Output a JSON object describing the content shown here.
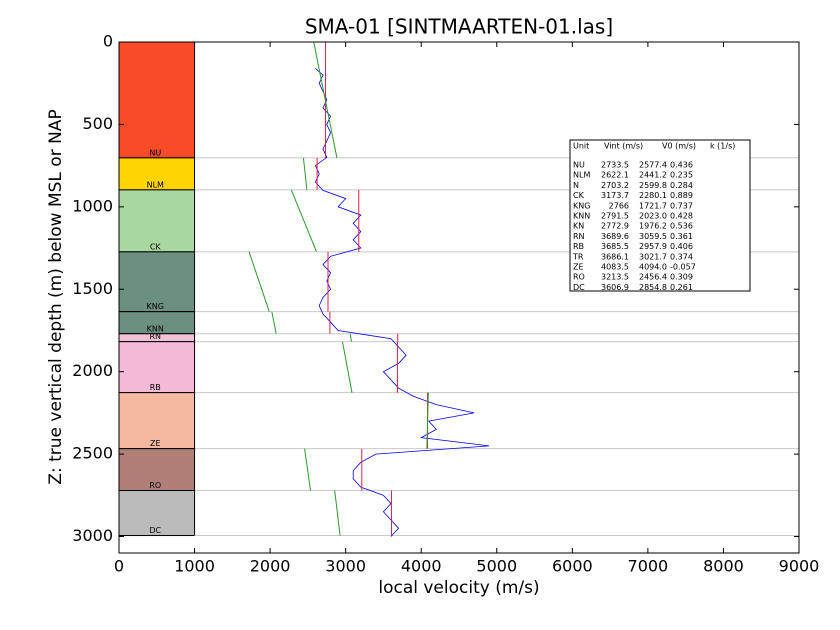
{
  "chart_data": {
    "type": "well-log",
    "title": "SMA-01 [SINTMAARTEN-01.las]",
    "x_label": "local velocity (m/s)",
    "y_label": "Z: true vertical depth (m) below MSL or NAP",
    "xlim": [
      0,
      9000
    ],
    "ylim": [
      0,
      3100
    ],
    "y_inverted": true,
    "xticks": [
      0,
      1000,
      2000,
      3000,
      4000,
      5000,
      6000,
      7000,
      8000,
      9000
    ],
    "yticks": [
      0,
      500,
      1000,
      1500,
      2000,
      2500,
      3000
    ],
    "column_width": 1000,
    "log_color": "#0000ff",
    "vint_color": "#e0204a",
    "trend_color": "#2a9a2a",
    "table_header": [
      "Unit",
      "Vint (m/s)",
      "V0 (m/s)",
      "k (1/s)"
    ],
    "formations": [
      {
        "name": "NU",
        "top": 0,
        "base": 703,
        "color": "#f94b28",
        "vint": 2733.5,
        "v0": 2577.4,
        "k": 0.436
      },
      {
        "name": "NLM",
        "top": 703,
        "base": 897,
        "color": "#ffd400",
        "vint": 2622.1,
        "v0": 2441.2,
        "k": 0.235
      },
      {
        "name": "N",
        "top": 703,
        "base": 897,
        "color": "#ffd400",
        "vint": 2703.2,
        "v0": 2599.8,
        "k": 0.284
      },
      {
        "name": "CK",
        "top": 897,
        "base": 1273,
        "color": "#a8d8a0",
        "vint": 3173.7,
        "v0": 2280.1,
        "k": 0.889
      },
      {
        "name": "KNG",
        "top": 1273,
        "base": 1636,
        "color": "#6b8f80",
        "vint": 2766.0,
        "v0": 1721.7,
        "k": 0.737
      },
      {
        "name": "KNN",
        "top": 1636,
        "base": 1770,
        "color": "#6b8f80",
        "vint": 2791.5,
        "v0": {
          "value": 2023,
          "label": "2023.0"
        },
        "k": 0.428
      },
      {
        "name": "KN",
        "top": 1273,
        "base": 1770,
        "color": "#6b8f80",
        "vint": 2772.9,
        "v0": 1976.2,
        "k": 0.536
      },
      {
        "name": "RN",
        "top": 1770,
        "base": 1818,
        "color": "#f4c2d4",
        "vint": 3689.6,
        "v0": 3059.5,
        "k": 0.361
      },
      {
        "name": "RB",
        "top": 1818,
        "base": 2127,
        "color": "#f4bad8",
        "vint": 3685.5,
        "v0": 2957.9,
        "k": 0.406
      },
      {
        "name": "TR",
        "top": 1770,
        "base": 2127,
        "color": "#f4bad8",
        "vint": 3686.1,
        "v0": 3021.7,
        "k": 0.374
      },
      {
        "name": "ZE",
        "top": 2127,
        "base": 2467,
        "color": "#f5b8a0",
        "vint": 4083.5,
        "v0": {
          "value": 4094,
          "label": "4094.0"
        },
        "k": -0.057
      },
      {
        "name": "RO",
        "top": 2467,
        "base": 2721,
        "color": "#b08078",
        "vint": 3213.5,
        "v0": 2456.4,
        "k": 0.309
      },
      {
        "name": "DC",
        "top": 2721,
        "base": 2994,
        "color": "#bbbbbb",
        "vint": 3606.9,
        "v0": 2854.8,
        "k": 0.261
      }
    ],
    "log": {
      "depth": [
        160,
        200,
        250,
        300,
        350,
        400,
        450,
        500,
        550,
        600,
        650,
        700,
        750,
        800,
        850,
        900,
        950,
        1000,
        1050,
        1100,
        1150,
        1200,
        1250,
        1300,
        1350,
        1400,
        1450,
        1500,
        1550,
        1600,
        1650,
        1700,
        1750,
        1800,
        1850,
        1900,
        1950,
        2000,
        2050,
        2100,
        2150,
        2200,
        2250,
        2300,
        2350,
        2400,
        2450,
        2500,
        2550,
        2600,
        2650,
        2700,
        2750,
        2800,
        2850,
        2900,
        2950,
        3000
      ],
      "velocity": [
        2600,
        2700,
        2650,
        2700,
        2750,
        2700,
        2800,
        2750,
        2800,
        2750,
        2700,
        2750,
        2600,
        2650,
        2600,
        2700,
        3000,
        2900,
        3200,
        3100,
        3200,
        3100,
        3200,
        2800,
        2700,
        2800,
        2750,
        2800,
        2700,
        2650,
        2700,
        2800,
        2900,
        3600,
        3700,
        3800,
        3700,
        3500,
        3600,
        3700,
        3900,
        4200,
        4700,
        4100,
        4200,
        4000,
        4900,
        3400,
        3200,
        3100,
        3100,
        3200,
        3500,
        3600,
        3500,
        3600,
        3700,
        3600
      ]
    }
  }
}
